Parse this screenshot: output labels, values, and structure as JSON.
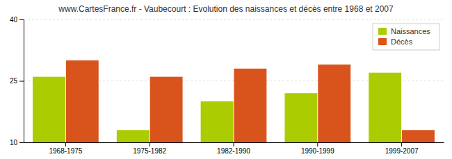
{
  "chart_data": {
    "type": "bar",
    "title": "www.CartesFrance.fr - Vaubecourt : Evolution des naissances et décès entre 1968 et 2007",
    "categories": [
      "1968-1975",
      "1975-1982",
      "1982-1990",
      "1990-1999",
      "1999-2007"
    ],
    "series": [
      {
        "name": "Naissances",
        "color": "#aacc00",
        "values": [
          26,
          13,
          20,
          22,
          27
        ]
      },
      {
        "name": "Décès",
        "color": "#d9541c",
        "values": [
          30,
          26,
          28,
          29,
          13
        ]
      }
    ],
    "ylim": [
      10,
      40
    ],
    "yticks": [
      10,
      25,
      40
    ],
    "grid": true,
    "legend": "upper right"
  }
}
